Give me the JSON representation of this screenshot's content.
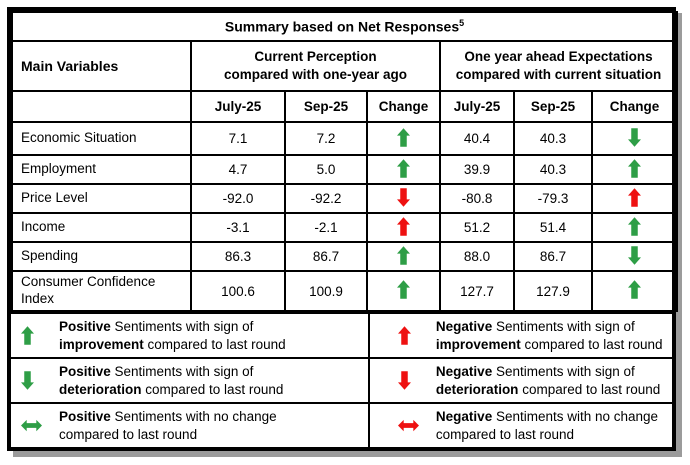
{
  "title": {
    "text": "Summary based on Net Responses",
    "superscript": "5"
  },
  "colors": {
    "green": "#2e9e46",
    "red": "#ee1111"
  },
  "table": {
    "main_variables_header": "Main Variables",
    "group_headers": [
      {
        "line1": "Current Perception",
        "line2": "compared with one-year ago"
      },
      {
        "line1": "One year ahead Expectations",
        "line2": "compared with current situation"
      }
    ],
    "sub_headers": [
      "July-25",
      "Sep-25",
      "Change",
      "July-25",
      "Sep-25",
      "Change"
    ],
    "rows": [
      {
        "label": "Economic Situation",
        "cp_jul": "7.1",
        "cp_sep": "7.2",
        "cp_change": "up_green",
        "ex_jul": "40.4",
        "ex_sep": "40.3",
        "ex_change": "down_green"
      },
      {
        "label": "Employment",
        "cp_jul": "4.7",
        "cp_sep": "5.0",
        "cp_change": "up_green",
        "ex_jul": "39.9",
        "ex_sep": "40.3",
        "ex_change": "up_green"
      },
      {
        "label": "Price Level",
        "cp_jul": "-92.0",
        "cp_sep": "-92.2",
        "cp_change": "down_red",
        "ex_jul": "-80.8",
        "ex_sep": "-79.3",
        "ex_change": "up_red"
      },
      {
        "label": "Income",
        "cp_jul": "-3.1",
        "cp_sep": "-2.1",
        "cp_change": "up_red",
        "ex_jul": "51.2",
        "ex_sep": "51.4",
        "ex_change": "up_green"
      },
      {
        "label": "Spending",
        "cp_jul": "86.3",
        "cp_sep": "86.7",
        "cp_change": "up_green",
        "ex_jul": "88.0",
        "ex_sep": "86.7",
        "ex_change": "down_green"
      },
      {
        "label": "Consumer Confidence Index",
        "cp_jul": "100.6",
        "cp_sep": "100.9",
        "cp_change": "up_green",
        "ex_jul": "127.7",
        "ex_sep": "127.9",
        "ex_change": "up_green"
      }
    ]
  },
  "legend": [
    {
      "arrow": "up_green",
      "bold1": "Positive",
      "text1": " Sentiments with sign of",
      "bold2": "improvement",
      "text2": " compared to last round"
    },
    {
      "arrow": "up_red",
      "bold1": "Negative",
      "text1": " Sentiments with sign of",
      "bold2": "improvement",
      "text2": " compared to last round"
    },
    {
      "arrow": "down_green",
      "bold1": "Positive",
      "text1": " Sentiments with sign of",
      "bold2": "deterioration",
      "text2": " compared to last round"
    },
    {
      "arrow": "down_red",
      "bold1": "Negative",
      "text1": " Sentiments with sign of",
      "bold2": "deterioration",
      "text2": " compared to last round"
    },
    {
      "arrow": "lr_green",
      "bold1": "Positive",
      "text1": " Sentiments with no change",
      "bold2": "",
      "text2": "compared to last round"
    },
    {
      "arrow": "lr_red",
      "bold1": "Negative",
      "text1": " Sentiments with no change",
      "bold2": "",
      "text2": "compared to last round"
    }
  ]
}
